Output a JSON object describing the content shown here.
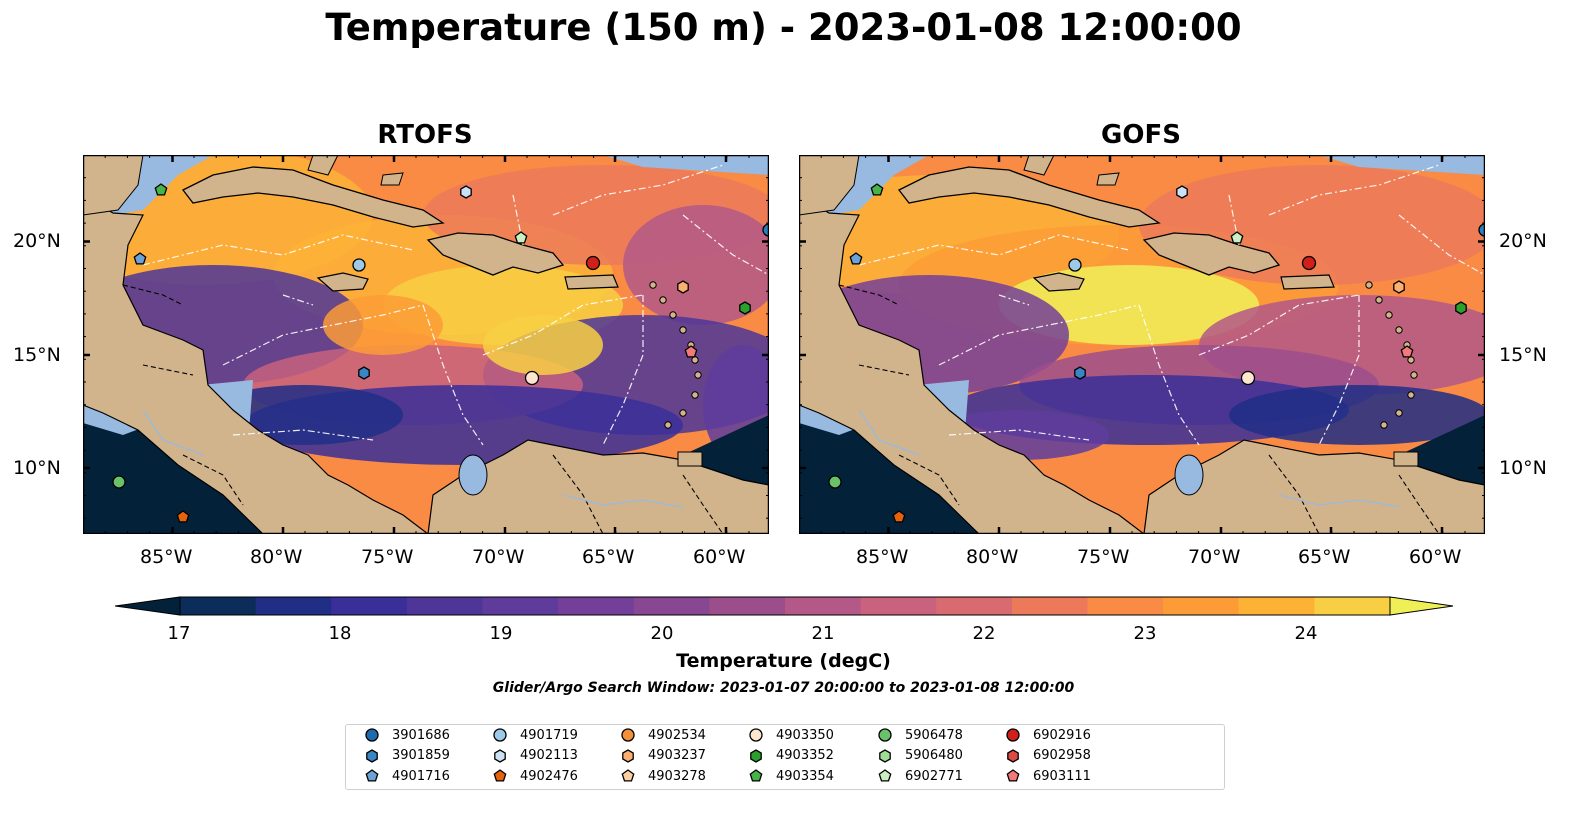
{
  "title": "Temperature (150 m) - 2023-01-08 12:00:00",
  "maps": [
    {
      "id": "rtofs",
      "title": "RTOFS"
    },
    {
      "id": "gofs",
      "title": "GOFS"
    }
  ],
  "axes": {
    "x_ticks": [
      "85°W",
      "80°W",
      "75°W",
      "70°W",
      "65°W",
      "60°W"
    ],
    "y_ticks": [
      "20°N",
      "15°N",
      "10°N"
    ]
  },
  "colorbar": {
    "label": "Temperature (degC)",
    "ticks": [
      "17",
      "18",
      "19",
      "20",
      "21",
      "22",
      "23",
      "24"
    ],
    "colors": [
      "#03223a",
      "#0c2c5a",
      "#202e86",
      "#3a2f99",
      "#4d3698",
      "#5f3c9c",
      "#743f98",
      "#884793",
      "#9c4e8c",
      "#b35887",
      "#c8627e",
      "#d96b70",
      "#ec7a5a",
      "#f98b45",
      "#fd9c37",
      "#fdb236",
      "#f8cf43",
      "#eff058"
    ]
  },
  "search_window": "Glider/Argo Search Window: 2023-01-07 20:00:00 to 2023-01-08 12:00:00",
  "legend": [
    {
      "id": "3901686",
      "marker": "circle",
      "color": "#1f6bb0"
    },
    {
      "id": "3901859",
      "marker": "hexagon",
      "color": "#3a85c6"
    },
    {
      "id": "4901716",
      "marker": "pentagon",
      "color": "#6ba3d6"
    },
    {
      "id": "4901719",
      "marker": "circle",
      "color": "#9ecae9"
    },
    {
      "id": "4902113",
      "marker": "hexagon",
      "color": "#cce2f4"
    },
    {
      "id": "4902476",
      "marker": "pentagon",
      "color": "#e6620c"
    },
    {
      "id": "4902534",
      "marker": "circle",
      "color": "#f4903a"
    },
    {
      "id": "4903237",
      "marker": "hexagon",
      "color": "#fbb072"
    },
    {
      "id": "4903278",
      "marker": "pentagon",
      "color": "#fdd0a2"
    },
    {
      "id": "4903350",
      "marker": "circle",
      "color": "#fde6cf"
    },
    {
      "id": "4903352",
      "marker": "hexagon",
      "color": "#2ca02c"
    },
    {
      "id": "4903354",
      "marker": "pentagon",
      "color": "#46b446"
    },
    {
      "id": "5906478",
      "marker": "circle",
      "color": "#69c26a"
    },
    {
      "id": "5906480",
      "marker": "hexagon",
      "color": "#a0dc96"
    },
    {
      "id": "6902771",
      "marker": "pentagon",
      "color": "#c8f0c0"
    },
    {
      "id": "6902916",
      "marker": "circle",
      "color": "#d0201a"
    },
    {
      "id": "6902958",
      "marker": "hexagon",
      "color": "#de4a44"
    },
    {
      "id": "6903111",
      "marker": "pentagon",
      "color": "#f47a7a"
    }
  ],
  "colors": {
    "land": "#d2b48c",
    "shelf": "#98b9e0",
    "deep": "#03223a"
  }
}
